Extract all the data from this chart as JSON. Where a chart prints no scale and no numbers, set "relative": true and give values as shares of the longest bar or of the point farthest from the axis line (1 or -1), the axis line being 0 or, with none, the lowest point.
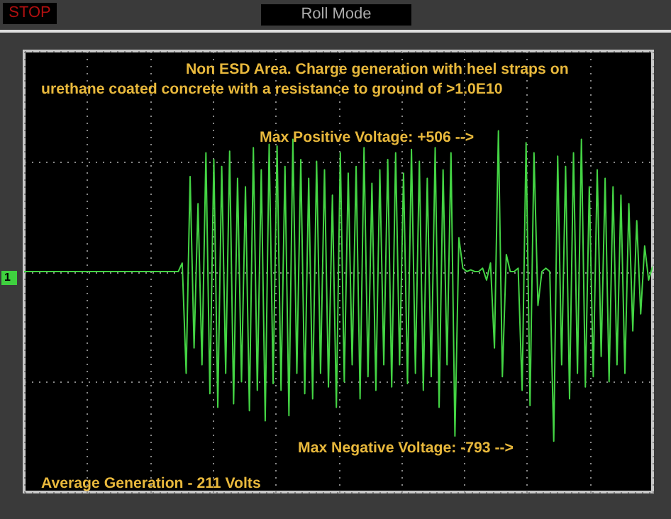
{
  "chart_data": {
    "type": "line",
    "title": "Non ESD Area. Charge generation with heel straps on urethane coated concrete with a resistance to ground of >1.0E10",
    "annotations": [
      "STOP",
      "Roll Mode",
      "1",
      "Max Positive Voltage: +506 -->",
      "Max Negative Voltage: -793   -->",
      "Average Generation - 211 Volts"
    ],
    "relative": true,
    "grid": true,
    "categories": [
      null,
      null,
      null,
      null,
      null,
      null,
      null,
      null,
      null,
      null,
      null,
      null,
      null,
      null,
      null,
      null,
      null,
      null,
      null,
      null,
      null,
      null,
      null,
      null,
      null,
      null,
      null,
      null,
      null,
      null,
      null,
      null,
      null,
      null,
      null,
      null,
      null,
      null,
      null,
      null,
      null,
      null,
      null,
      null,
      null,
      null,
      null,
      null,
      null,
      null,
      null,
      null,
      null,
      null,
      null,
      null,
      null,
      null,
      null,
      null,
      null,
      null,
      null,
      null,
      null,
      null,
      null,
      null,
      null,
      null,
      null,
      null,
      null,
      null,
      null,
      null,
      null,
      null,
      null,
      null,
      null,
      null,
      null,
      null,
      null,
      null,
      null,
      null,
      null,
      null,
      null,
      null,
      null,
      null,
      null,
      null,
      null,
      null,
      null,
      null,
      null,
      null,
      null,
      null,
      null,
      null,
      null,
      null,
      null,
      null,
      null,
      null,
      null,
      null,
      null,
      null,
      null,
      null,
      null,
      null,
      null,
      null,
      null,
      null,
      null,
      null,
      null,
      null,
      null,
      null,
      null,
      null,
      null,
      null,
      null,
      null,
      null,
      null,
      null,
      null,
      null,
      null,
      null,
      null,
      null,
      null,
      null,
      null,
      null,
      null,
      null,
      null,
      null,
      null,
      null,
      null,
      null,
      null,
      null,
      null
    ],
    "series": [
      {
        "color": "#44d444",
        "values": [
          0,
          0,
          0,
          0,
          0,
          0,
          0,
          0,
          0,
          0,
          0,
          0,
          0,
          0,
          0,
          0,
          0,
          0,
          0,
          0,
          0,
          0,
          0,
          0,
          0,
          0,
          0,
          0,
          0,
          0,
          0,
          0,
          0,
          0,
          0,
          0,
          0,
          0,
          0,
          0,
          0.05,
          -0.6,
          0.56,
          -0.45,
          0.4,
          -0.55,
          0.7,
          -0.72,
          0.66,
          -0.8,
          0.62,
          -0.6,
          0.71,
          -0.78,
          0.55,
          -0.65,
          0.5,
          -0.82,
          0.73,
          -0.7,
          0.6,
          -0.88,
          0.75,
          -0.66,
          0.74,
          -0.7,
          0.62,
          -0.85,
          0.78,
          -0.6,
          0.66,
          -0.72,
          0.55,
          -0.75,
          0.65,
          -0.6,
          0.6,
          -0.68,
          0.45,
          -0.8,
          0.7,
          -0.65,
          0.58,
          -0.55,
          0.62,
          -0.75,
          0.73,
          -0.62,
          0.52,
          -0.7,
          0.6,
          -0.55,
          0.66,
          -0.68,
          0.7,
          -0.55,
          0.58,
          -0.66,
          0.72,
          -0.6,
          0.65,
          -0.7,
          0.55,
          -0.62,
          0.73,
          -0.8,
          0.6,
          -0.55,
          0.7,
          -0.97,
          0.2,
          0.02,
          0,
          0.01,
          0,
          0,
          0.02,
          -0.05,
          0.05,
          -0.45,
          0.83,
          -0.62,
          0.1,
          0,
          0,
          0.02,
          -0.7,
          0.76,
          -0.79,
          0.7,
          -0.2,
          0,
          0.02,
          0,
          -1,
          0.68,
          -0.55,
          0.62,
          -0.75,
          0.7,
          -0.6,
          0.78,
          -0.68,
          0.5,
          -0.62,
          0.6,
          -0.5,
          0.55,
          -0.65,
          0.5,
          -0.55,
          0.45,
          -0.6,
          0.4,
          -0.35,
          0.3,
          -0.25,
          0.15,
          -0.05,
          0.03
        ]
      }
    ]
  }
}
